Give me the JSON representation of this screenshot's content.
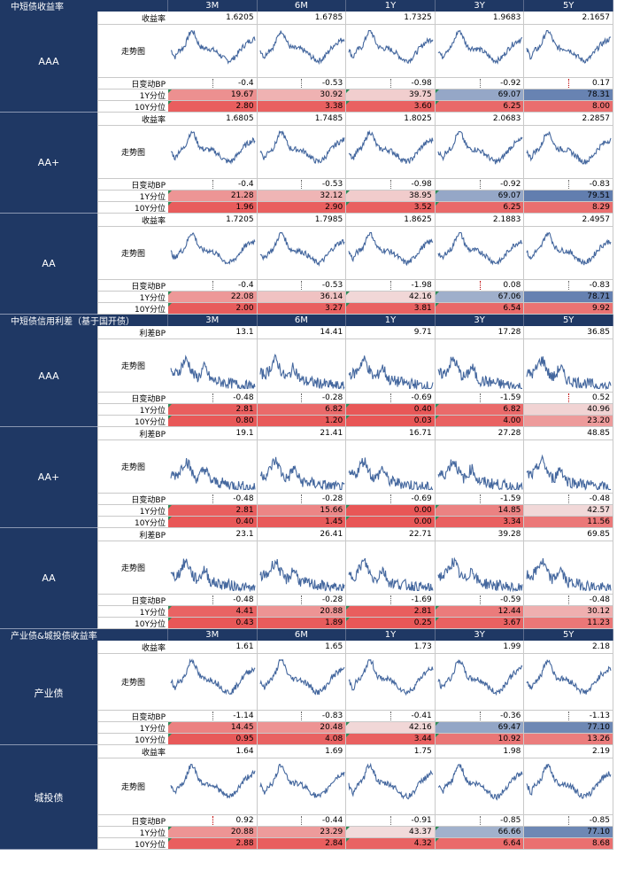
{
  "tenors": [
    "3M",
    "6M",
    "1Y",
    "3Y",
    "5Y"
  ],
  "sections": [
    {
      "title": "中短债收益率",
      "groups": [
        {
          "name": "AAA",
          "main_label": "收益率",
          "main": [
            "1.6205",
            "1.6785",
            "1.7325",
            "1.9683",
            "2.1657"
          ],
          "change": [
            "-0.4",
            "-0.53",
            "-0.98",
            "-0.92",
            "0.17"
          ],
          "p1": [
            "19.67",
            "30.92",
            "39.75",
            "69.07",
            "78.31"
          ],
          "p10": [
            "2.80",
            "3.38",
            "3.60",
            "6.25",
            "8.00"
          ]
        },
        {
          "name": "AA+",
          "main_label": "收益率",
          "main": [
            "1.6805",
            "1.7485",
            "1.8025",
            "2.0683",
            "2.2857"
          ],
          "change": [
            "-0.4",
            "-0.53",
            "-0.98",
            "-0.92",
            "-0.83"
          ],
          "p1": [
            "21.28",
            "32.12",
            "38.95",
            "69.07",
            "79.51"
          ],
          "p10": [
            "1.96",
            "2.90",
            "3.52",
            "6.25",
            "8.29"
          ]
        },
        {
          "name": "AA",
          "main_label": "收益率",
          "main": [
            "1.7205",
            "1.7985",
            "1.8625",
            "2.1883",
            "2.4957"
          ],
          "change": [
            "-0.4",
            "-0.53",
            "-1.98",
            "0.08",
            "-0.83"
          ],
          "p1": [
            "22.08",
            "36.14",
            "42.16",
            "67.06",
            "78.71"
          ],
          "p10": [
            "2.00",
            "3.27",
            "3.81",
            "6.54",
            "9.92"
          ]
        }
      ]
    },
    {
      "title": "中短债信用利差（基于国开债）",
      "groups": [
        {
          "name": "AAA",
          "main_label": "利差BP",
          "main": [
            "13.1",
            "14.41",
            "9.71",
            "17.28",
            "36.85"
          ],
          "change": [
            "-0.48",
            "-0.28",
            "-0.69",
            "-1.59",
            "0.52"
          ],
          "p1": [
            "2.81",
            "6.82",
            "0.40",
            "6.82",
            "40.96"
          ],
          "p10": [
            "0.80",
            "1.20",
            "0.03",
            "4.00",
            "23.20"
          ]
        },
        {
          "name": "AA+",
          "main_label": "利差BP",
          "main": [
            "19.1",
            "21.41",
            "16.71",
            "27.28",
            "48.85"
          ],
          "change": [
            "-0.48",
            "-0.28",
            "-0.69",
            "-1.59",
            "-0.48"
          ],
          "p1": [
            "2.81",
            "15.66",
            "0.00",
            "14.85",
            "42.57"
          ],
          "p10": [
            "0.40",
            "1.45",
            "0.00",
            "3.34",
            "11.56"
          ]
        },
        {
          "name": "AA",
          "main_label": "利差BP",
          "main": [
            "23.1",
            "26.41",
            "22.71",
            "39.28",
            "69.85"
          ],
          "change": [
            "-0.48",
            "-0.28",
            "-1.69",
            "-0.59",
            "-0.48"
          ],
          "p1": [
            "4.41",
            "20.88",
            "2.81",
            "12.44",
            "30.12"
          ],
          "p10": [
            "0.43",
            "1.89",
            "0.25",
            "3.67",
            "11.23"
          ]
        }
      ]
    },
    {
      "title": "产业债&城投债收益率",
      "groups": [
        {
          "name": "产业债",
          "main_label": "收益率",
          "main": [
            "1.61",
            "1.65",
            "1.73",
            "1.99",
            "2.18"
          ],
          "change": [
            "-1.14",
            "-0.83",
            "-0.41",
            "-0.36",
            "-1.13"
          ],
          "p1": [
            "14.45",
            "20.48",
            "42.16",
            "69.47",
            "77.10"
          ],
          "p10": [
            "0.95",
            "4.08",
            "3.44",
            "10.92",
            "13.26"
          ]
        },
        {
          "name": "城投债",
          "main_label": "收益率",
          "main": [
            "1.64",
            "1.69",
            "1.75",
            "1.98",
            "2.19"
          ],
          "change": [
            "0.92",
            "-0.44",
            "-0.91",
            "-0.85",
            "-0.85"
          ],
          "p1": [
            "20.88",
            "23.29",
            "43.37",
            "66.66",
            "77.10"
          ],
          "p10": [
            "2.88",
            "2.84",
            "4.32",
            "6.64",
            "8.68"
          ]
        }
      ]
    }
  ],
  "row_labels": {
    "trend": "走势图",
    "change": "日变动BP",
    "p1": "1Y分位",
    "p10": "10Y分位"
  },
  "colors": {
    "header": "#1f3864",
    "low": "#e85656",
    "mid": "#f2f2f2",
    "high": "#2f5597",
    "line": "#44679e"
  }
}
